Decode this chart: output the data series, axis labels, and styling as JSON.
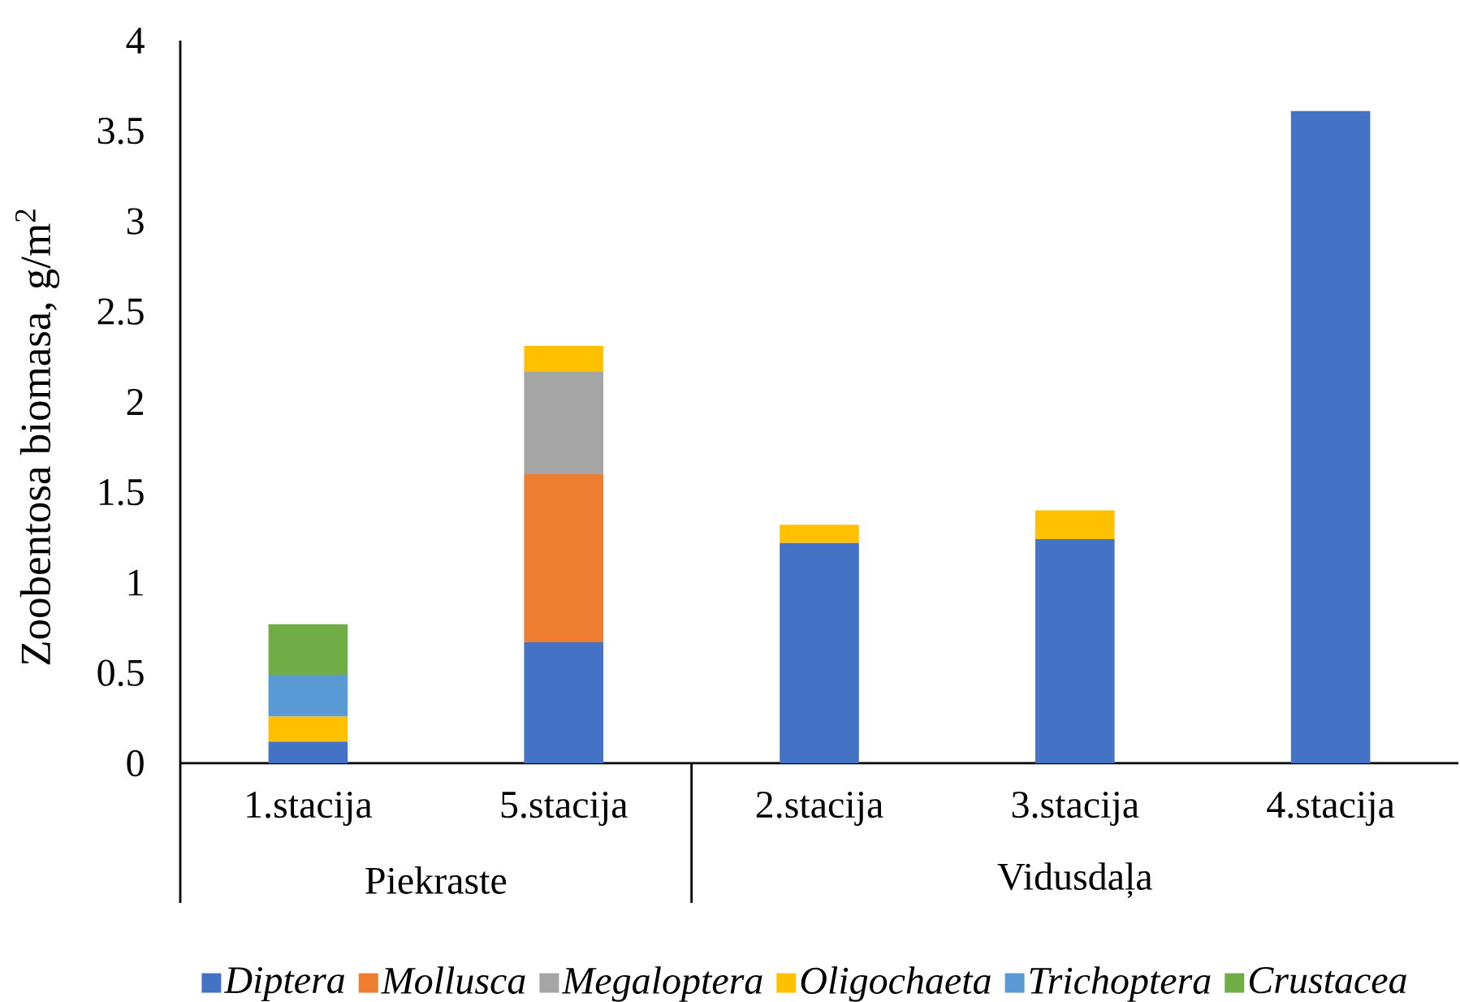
{
  "chart_data": {
    "type": "bar",
    "stacked": true,
    "ylabel": "Zoobentosa biomasa, g/m$^{2}$",
    "categories": [
      "1.stacija",
      "5.stacija",
      "2.stacija",
      "3.stacija",
      "4.stacija"
    ],
    "annotations": [
      "Piekraste",
      "Vidusdaļa"
    ],
    "series": [
      {
        "name": "Diptera",
        "color": "#4472c4",
        "values": [
          0.12,
          0.67,
          1.22,
          1.24,
          3.61
        ]
      },
      {
        "name": "Mollusca",
        "color": "#ed7d31",
        "values": [
          null,
          0.93,
          null,
          null,
          null
        ]
      },
      {
        "name": "Megaloptera",
        "color": "#a5a5a5",
        "values": [
          null,
          0.57,
          null,
          null,
          null
        ]
      },
      {
        "name": "Oligochaeta",
        "color": "#ffc000",
        "values": [
          0.14,
          0.14,
          0.1,
          0.16,
          null
        ]
      },
      {
        "name": "Trichoptera",
        "color": "#5b9bd5",
        "values": [
          0.23,
          null,
          null,
          null,
          null
        ]
      },
      {
        "name": "Crustacea",
        "color": "#70ad47",
        "values": [
          0.28,
          null,
          null,
          null,
          null
        ]
      }
    ],
    "ylim": [
      0,
      4
    ],
    "yticks": [
      0,
      0.5,
      1,
      1.5,
      2,
      2.5,
      3,
      3.5,
      4
    ],
    "legend": "bottom"
  }
}
